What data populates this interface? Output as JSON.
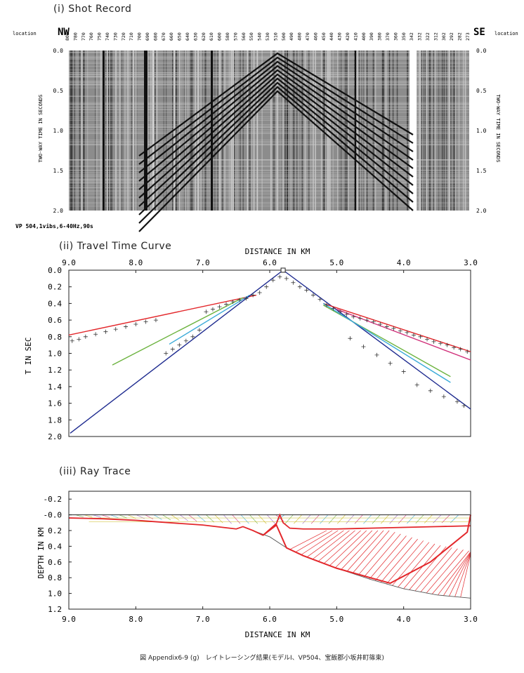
{
  "shot_record": {
    "title": "(i) Shot Record",
    "left_dir": "NW",
    "right_dir": "SE",
    "location_label": "location",
    "ylabel": "TWO-WAY TIME IN SECONDS",
    "yticks": [
      "0.0",
      "0.5",
      "1.0",
      "1.5",
      "2.0"
    ],
    "location_ticks": [
      "800",
      "780",
      "770",
      "760",
      "750",
      "740",
      "730",
      "720",
      "710",
      "700",
      "690",
      "680",
      "670",
      "660",
      "650",
      "640",
      "630",
      "620",
      "610",
      "600",
      "580",
      "570",
      "560",
      "550",
      "540",
      "530",
      "510",
      "500",
      "490",
      "480",
      "470",
      "460",
      "450",
      "440",
      "430",
      "420",
      "410",
      "400",
      "390",
      "380",
      "370",
      "360",
      "350",
      "342",
      "332",
      "322",
      "312",
      "302",
      "292",
      "282",
      "273"
    ],
    "note": "VP 504,1vibs,6-40Hz,90s"
  },
  "chart_data": [
    {
      "type": "scatter",
      "title": "(ii) Travel Time Curve",
      "xlabel": "DISTANCE IN KM",
      "ylabel": "T IN SEC",
      "xlim": [
        9.0,
        3.0
      ],
      "ylim": [
        2.0,
        0.0
      ],
      "xticks": [
        "9.0",
        "8.0",
        "7.0",
        "6.0",
        "5.0",
        "4.0",
        "3.0"
      ],
      "yticks": [
        "0.0",
        "0.2",
        "0.4",
        "0.6",
        "0.8",
        "1.0",
        "1.2",
        "1.4",
        "1.6",
        "1.8",
        "2.0"
      ],
      "source_x": 5.8,
      "observed": {
        "x": [
          8.95,
          8.85,
          8.75,
          8.6,
          8.45,
          8.3,
          8.15,
          8.0,
          7.85,
          7.7,
          7.55,
          7.45,
          7.35,
          7.25,
          7.15,
          7.05,
          6.95,
          6.85,
          6.75,
          6.65,
          6.55,
          6.45,
          6.35,
          6.25,
          6.15,
          6.05,
          5.95,
          5.85,
          5.75,
          5.65,
          5.55,
          5.45,
          5.35,
          5.25,
          5.15,
          5.05,
          4.95,
          4.85,
          4.75,
          4.65,
          4.55,
          4.45,
          4.35,
          4.25,
          4.15,
          4.05,
          3.95,
          3.85,
          3.75,
          3.65,
          3.55,
          3.45,
          3.35,
          3.25,
          3.15,
          3.05,
          4.8,
          4.6,
          4.4,
          4.2,
          4.0,
          3.8,
          3.6,
          3.4,
          3.2,
          3.1
        ],
        "y": [
          0.85,
          0.83,
          0.8,
          0.77,
          0.74,
          0.71,
          0.68,
          0.65,
          0.62,
          0.6,
          1.0,
          0.95,
          0.9,
          0.85,
          0.8,
          0.72,
          0.5,
          0.47,
          0.44,
          0.41,
          0.38,
          0.36,
          0.34,
          0.3,
          0.27,
          0.2,
          0.12,
          0.08,
          0.1,
          0.15,
          0.2,
          0.24,
          0.3,
          0.35,
          0.42,
          0.46,
          0.5,
          0.53,
          0.56,
          0.58,
          0.6,
          0.62,
          0.65,
          0.68,
          0.7,
          0.73,
          0.75,
          0.78,
          0.8,
          0.83,
          0.86,
          0.88,
          0.9,
          0.93,
          0.95,
          0.98,
          0.82,
          0.92,
          1.02,
          1.12,
          1.22,
          1.38,
          1.45,
          1.52,
          1.58,
          1.63
        ]
      },
      "series": [
        {
          "color": "#e3272b",
          "x": [
            9.0,
            6.2
          ],
          "y": [
            0.78,
            0.3
          ]
        },
        {
          "color": "#6cb33f",
          "x": [
            8.35,
            6.4
          ],
          "y": [
            1.14,
            0.33
          ]
        },
        {
          "color": "#3aaad8",
          "x": [
            7.5,
            6.3
          ],
          "y": [
            0.89,
            0.3
          ]
        },
        {
          "color": "#1d2a8f",
          "x": [
            8.98,
            5.8
          ],
          "y": [
            1.96,
            0.0
          ]
        },
        {
          "color": "#1d2a8f",
          "x": [
            5.8,
            3.0
          ],
          "y": [
            0.0,
            1.67
          ]
        },
        {
          "color": "#e3272b",
          "x": [
            5.2,
            3.0
          ],
          "y": [
            0.4,
            0.98
          ]
        },
        {
          "color": "#d0307a",
          "x": [
            5.0,
            3.0
          ],
          "y": [
            0.47,
            1.08
          ]
        },
        {
          "color": "#6cb33f",
          "x": [
            5.2,
            3.3
          ],
          "y": [
            0.42,
            1.28
          ]
        },
        {
          "color": "#3aaad8",
          "x": [
            5.2,
            3.3
          ],
          "y": [
            0.4,
            1.35
          ]
        }
      ]
    },
    {
      "type": "line",
      "title": "(iii) Ray Trace",
      "xlabel": "DISTANCE IN KM",
      "ylabel": "DEPTH IN KM",
      "xlim": [
        9.0,
        3.0
      ],
      "ylim": [
        1.2,
        -0.3
      ],
      "xticks": [
        "9.0",
        "8.0",
        "7.0",
        "6.0",
        "5.0",
        "4.0",
        "3.0"
      ],
      "yticks": [
        "-0.2",
        "-0.0",
        "0.2",
        "0.4",
        "0.6",
        "0.8",
        "1.0",
        "1.2"
      ],
      "source_x": 5.8,
      "surface": {
        "x": [
          9.0,
          3.0
        ],
        "y": [
          0.0,
          0.0
        ]
      },
      "shallow_boundary": {
        "x": [
          9.0,
          8.5,
          8.0,
          7.5,
          7.0,
          6.6,
          6.5,
          6.4,
          6.25,
          6.1,
          5.9,
          5.85,
          5.8,
          5.7,
          5.5,
          5.0,
          4.5,
          4.0,
          3.5,
          3.0
        ],
        "y": [
          0.04,
          0.05,
          0.07,
          0.1,
          0.13,
          0.17,
          0.18,
          0.15,
          0.2,
          0.26,
          0.11,
          0.0,
          0.1,
          0.17,
          0.18,
          0.18,
          0.17,
          0.16,
          0.15,
          0.14
        ]
      },
      "deep_boundary": {
        "x": [
          6.25,
          6.0,
          5.75,
          5.5,
          5.0,
          4.5,
          4.0,
          3.5,
          3.0
        ],
        "y": [
          0.2,
          0.28,
          0.42,
          0.52,
          0.68,
          0.82,
          0.94,
          1.02,
          1.06
        ]
      },
      "deep_raypath": {
        "x": [
          6.1,
          5.9,
          5.75,
          5.5,
          5.0,
          4.5,
          4.2,
          3.6,
          3.05,
          3.0
        ],
        "y": [
          0.26,
          0.13,
          0.42,
          0.52,
          0.68,
          0.8,
          0.87,
          0.6,
          0.22,
          0.0
        ]
      }
    }
  ],
  "caption": "図 Appendix6-9 (g)　レイトレーシング結果(モデルⅠ、VP504、宝飯郡小坂井町篠束)",
  "colors": {
    "red": "#e3272b",
    "green": "#6cb33f",
    "cyan": "#3aaad8",
    "navy": "#1d2a8f",
    "magenta": "#d0307a",
    "yellow": "#c9b81d",
    "violet": "#9a63c9"
  }
}
